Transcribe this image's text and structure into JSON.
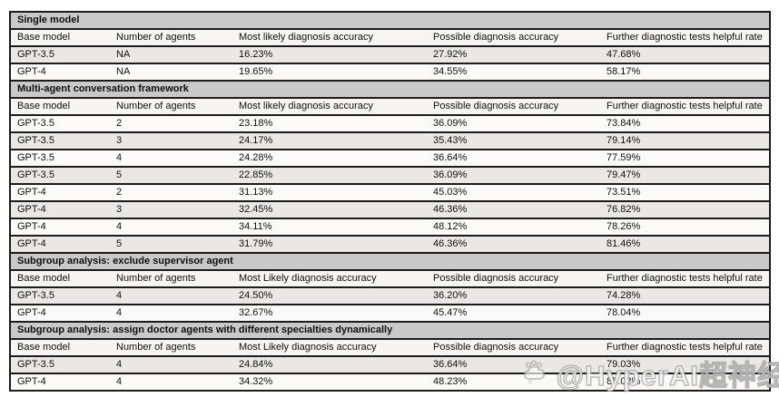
{
  "page": {
    "background": "#ffffff"
  },
  "colors": {
    "section_header_bg": "#c9c9c9",
    "column_header_bg": "#f6f5f3",
    "row_plain_bg": "#fbfaf8",
    "row_shaded_bg": "#e9e8e5",
    "border": "#1b1b1b",
    "text": "#0f0f0f"
  },
  "table": {
    "column_keys": [
      "base-model",
      "num-agents",
      "most-likely-accuracy",
      "possible-accuracy",
      "further-tests-helpful-rate"
    ],
    "sections": [
      {
        "title": "Single model",
        "columns": [
          "Base model",
          "Number of agents",
          "Most likely diagnosis accuracy",
          "Possible diagnosis accuracy",
          "Further diagnostic tests helpful rate"
        ],
        "stripe_start": "shaded",
        "rows": [
          [
            "GPT-3.5",
            "NA",
            "16.23%",
            "27.92%",
            "47.68%"
          ],
          [
            "GPT-4",
            "NA",
            "19.65%",
            "34.55%",
            "58.17%"
          ]
        ]
      },
      {
        "title": "Multi-agent conversation framework",
        "columns": [
          "Base model",
          "Number of agents",
          "Most likely diagnosis accuracy",
          "Possible diagnosis accuracy",
          "Further diagnostic tests helpful rate"
        ],
        "stripe_start": "plain",
        "rows": [
          [
            "GPT-3.5",
            "2",
            "23.18%",
            "36.09%",
            "73.84%"
          ],
          [
            "GPT-3.5",
            "3",
            "24.17%",
            "35.43%",
            "79.14%"
          ],
          [
            "GPT-3.5",
            "4",
            "24.28%",
            "36.64%",
            "77.59%"
          ],
          [
            "GPT-3.5",
            "5",
            "22.85%",
            "36.09%",
            "79.47%"
          ],
          [
            "GPT-4",
            "2",
            "31.13%",
            "45.03%",
            "73.51%"
          ],
          [
            "GPT-4",
            "3",
            "32.45%",
            "46.36%",
            "76.82%"
          ],
          [
            "GPT-4",
            "4",
            "34.11%",
            "48.12%",
            "78.26%"
          ],
          [
            "GPT-4",
            "5",
            "31.79%",
            "46.36%",
            "81.46%"
          ]
        ]
      },
      {
        "title": "Subgroup analysis: exclude supervisor agent",
        "columns": [
          "Base model",
          "Number of agents",
          "Most Likely diagnosis accuracy",
          "Possible diagnosis accuracy",
          "Further diagnostic tests helpful rate"
        ],
        "stripe_start": "shaded",
        "rows": [
          [
            "GPT-3.5",
            "4",
            "24.50%",
            "36.20%",
            "74.28%"
          ],
          [
            "GPT-4",
            "4",
            "32.67%",
            "45.47%",
            "78.04%"
          ]
        ]
      },
      {
        "title": "Subgroup analysis: assign doctor agents with different specialties dynamically",
        "columns": [
          "Base model",
          "Number of agents",
          "Most Likely diagnosis accuracy",
          "Possible diagnosis accuracy",
          "Further diagnostic tests helpful rate"
        ],
        "stripe_start": "shaded",
        "rows": [
          [
            "GPT-3.5",
            "4",
            "24.84%",
            "36.64%",
            "79.03%"
          ],
          [
            "GPT-4",
            "4",
            "34.32%",
            "48.23%",
            "85.02%"
          ]
        ]
      }
    ]
  },
  "watermark": {
    "text": "@HyperAI超神经",
    "icon": "hyperai-cloud-logo"
  }
}
